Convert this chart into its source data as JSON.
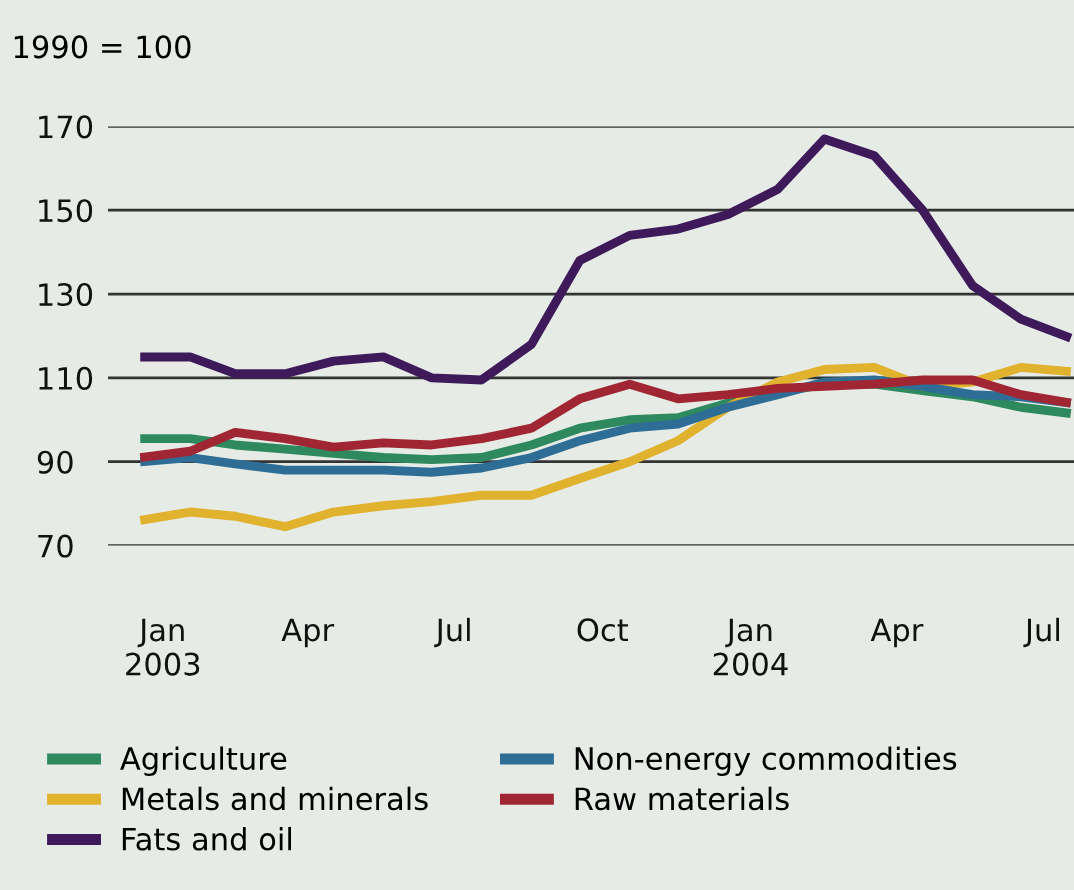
{
  "chart_data": {
    "type": "line",
    "ylabel": "1990 = 100",
    "x": [
      "2003-01",
      "2003-02",
      "2003-03",
      "2003-04",
      "2003-05",
      "2003-06",
      "2003-07",
      "2003-08",
      "2003-09",
      "2003-10",
      "2003-11",
      "2003-12",
      "2004-01",
      "2004-02",
      "2004-03",
      "2004-04",
      "2004-05",
      "2004-06",
      "2004-07",
      "2004-08"
    ],
    "series": [
      {
        "name": "Agriculture",
        "color": "#2e8a5e",
        "values": [
          95.5,
          95.5,
          94,
          93,
          92,
          91,
          90.5,
          91,
          94,
          98,
          100,
          100.5,
          104,
          106.5,
          108.5,
          108.5,
          107,
          105.5,
          103,
          101.5
        ]
      },
      {
        "name": "Metals and minerals",
        "color": "#e0b22e",
        "values": [
          76,
          78,
          77,
          74.5,
          78,
          79.5,
          80.5,
          82,
          82,
          86,
          90,
          95,
          103,
          109,
          112,
          112.5,
          108,
          109,
          112.5,
          111.5
        ]
      },
      {
        "name": "Fats and oil",
        "color": "#3e1a5a",
        "values": [
          115,
          115,
          111,
          111,
          114,
          115,
          110,
          109.5,
          118,
          138,
          144,
          145.5,
          149,
          155,
          167,
          163,
          150,
          132,
          124,
          119.5
        ]
      },
      {
        "name": "Non-energy commodities",
        "color": "#2e6e96",
        "values": [
          90,
          91,
          89.5,
          88,
          88,
          88,
          87.5,
          88.5,
          91,
          95,
          98,
          99,
          103,
          106,
          109,
          109.5,
          108,
          106,
          105.5,
          104
        ]
      },
      {
        "name": "Raw materials",
        "color": "#a02633",
        "values": [
          91,
          92.5,
          97,
          95.5,
          93.5,
          94.5,
          94,
          95.5,
          98,
          105,
          108.5,
          105,
          106,
          107.5,
          108,
          108.5,
          109.5,
          109.5,
          106,
          104
        ]
      }
    ],
    "xlim": [
      "2002-12-12",
      "2004-08-03"
    ],
    "xticks": [
      {
        "value": "2003-01-15",
        "label": "Jan\n2003"
      },
      {
        "value": "2003-04-15",
        "label": "Apr"
      },
      {
        "value": "2003-07-15",
        "label": "Jul"
      },
      {
        "value": "2003-10-15",
        "label": "Oct"
      },
      {
        "value": "2004-01-15",
        "label": "Jan\n2004"
      },
      {
        "value": "2004-04-15",
        "label": "Apr"
      },
      {
        "value": "2004-07-15",
        "label": "Jul"
      }
    ],
    "ylim": [
      70,
      170
    ],
    "yticks": [
      70,
      90,
      110,
      130,
      150,
      170
    ],
    "grid": "y",
    "legend": "bottom",
    "marker": "none",
    "line_style": "solid"
  }
}
